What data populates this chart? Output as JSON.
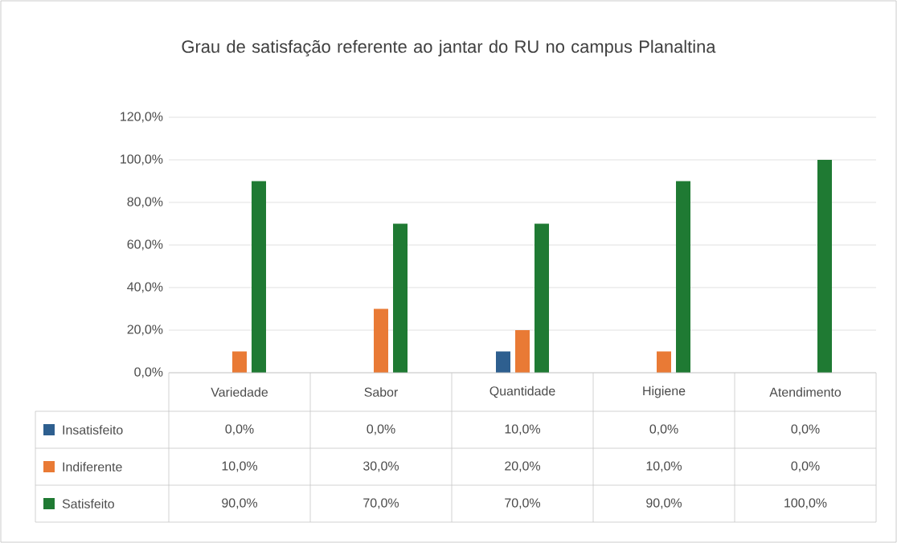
{
  "chart_data": {
    "type": "bar",
    "title": "Grau de satisfação referente ao jantar do RU no campus Planaltina",
    "categories": [
      "Variedade",
      "Sabor",
      "Quantidade",
      "Higiene",
      "Atendimento"
    ],
    "series": [
      {
        "name": "Insatisfeito",
        "color": "#2e5f8f",
        "values": [
          0,
          0,
          10,
          0,
          0
        ],
        "value_labels": [
          "0,0%",
          "0,0%",
          "10,0%",
          "0,0%",
          "0,0%"
        ]
      },
      {
        "name": "Indiferente",
        "color": "#e97a35",
        "values": [
          10,
          30,
          20,
          10,
          0
        ],
        "value_labels": [
          "10,0%",
          "30,0%",
          "20,0%",
          "10,0%",
          "0,0%"
        ]
      },
      {
        "name": "Satisfeito",
        "color": "#1f7a33",
        "values": [
          90,
          70,
          70,
          90,
          100
        ],
        "value_labels": [
          "90,0%",
          "70,0%",
          "70,0%",
          "90,0%",
          "100,0%"
        ]
      }
    ],
    "ylim": [
      0,
      120
    ],
    "yticks": [
      {
        "value": 0,
        "label": "0,0%"
      },
      {
        "value": 20,
        "label": "20,0%"
      },
      {
        "value": 40,
        "label": "40,0%"
      },
      {
        "value": 60,
        "label": "60,0%"
      },
      {
        "value": 80,
        "label": "80,0%"
      },
      {
        "value": 100,
        "label": "100,0%"
      },
      {
        "value": 120,
        "label": "120,0%"
      }
    ],
    "grid": "y",
    "legend": "bottom"
  }
}
